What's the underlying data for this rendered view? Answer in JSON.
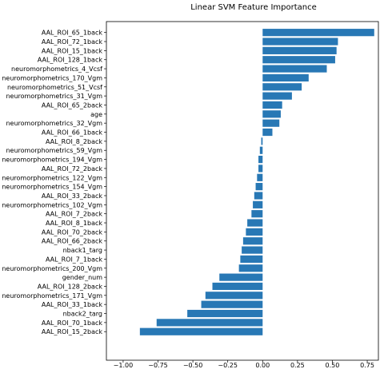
{
  "chart_data": {
    "type": "bar",
    "orientation": "horizontal",
    "title": "Linear SVM Feature Importance",
    "xlabel": "",
    "ylabel": "",
    "xlim": [
      -1.12,
      0.83
    ],
    "xticks": [
      -1.0,
      -0.75,
      -0.5,
      -0.25,
      0.0,
      0.25,
      0.5,
      0.75
    ],
    "xtick_labels": [
      "−1.00",
      "−0.75",
      "−0.50",
      "−0.25",
      "0.00",
      "0.25",
      "0.50",
      "0.75"
    ],
    "grid": false,
    "bar_color": "#2878b5",
    "categories": [
      "AAL_ROI_65_1back",
      "AAL_ROI_72_1back",
      "AAL_ROI_15_1back",
      "AAL_ROI_128_1back",
      "neuromorphometrics_4_Vcsf",
      "neuromorphometrics_170_Vgm",
      "neuromorphometrics_51_Vcsf",
      "neuromorphometrics_31_Vgm",
      "AAL_ROI_65_2back",
      "age",
      "neuromorphometrics_32_Vgm",
      "AAL_ROI_66_1back",
      "AAL_ROI_8_2back",
      "neuromorphometrics_59_Vgm",
      "neuromorphometrics_194_Vgm",
      "AAL_ROI_72_2back",
      "neuromorphometrics_122_Vgm",
      "neuromorphometrics_154_Vgm",
      "AAL_ROI_33_2back",
      "neuromorphometrics_102_Vgm",
      "AAL_ROI_7_2back",
      "AAL_ROI_8_1back",
      "AAL_ROI_70_2back",
      "AAL_ROI_66_2back",
      "nback1_targ",
      "AAL_ROI_7_1back",
      "neuromorphometrics_200_Vgm",
      "gender_num",
      "AAL_ROI_128_2back",
      "neuromorphometrics_171_Vgm",
      "AAL_ROI_33_1back",
      "nback2_targ",
      "AAL_ROI_70_1back",
      "AAL_ROI_15_2back"
    ],
    "values": [
      0.8,
      0.54,
      0.53,
      0.52,
      0.46,
      0.33,
      0.28,
      0.21,
      0.14,
      0.13,
      0.12,
      0.07,
      -0.01,
      -0.02,
      -0.03,
      -0.03,
      -0.04,
      -0.05,
      -0.06,
      -0.07,
      -0.08,
      -0.11,
      -0.12,
      -0.14,
      -0.15,
      -0.16,
      -0.17,
      -0.31,
      -0.36,
      -0.41,
      -0.44,
      -0.54,
      -0.76,
      -0.88
    ]
  }
}
